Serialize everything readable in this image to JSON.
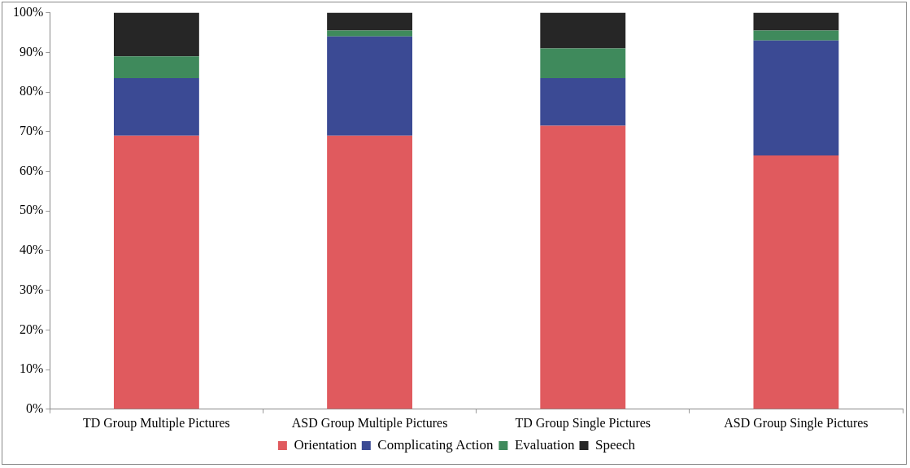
{
  "chart_data": {
    "type": "bar",
    "stacked": true,
    "categories": [
      "TD Group Multiple Pictures",
      "ASD Group Multiple Pictures",
      "TD Group Single Pictures",
      "ASD Group Single Pictures"
    ],
    "series": [
      {
        "name": "Orientation",
        "color": "#e05a5e",
        "values": [
          69,
          69,
          71.5,
          64
        ]
      },
      {
        "name": "Complicating Action",
        "color": "#3b4a94",
        "values": [
          14.5,
          25,
          12,
          29
        ]
      },
      {
        "name": "Evaluation",
        "color": "#3f8a5c",
        "values": [
          5.5,
          1.5,
          7.5,
          2.5
        ]
      },
      {
        "name": "Speech",
        "color": "#262626",
        "values": [
          11,
          4.5,
          9,
          4.5
        ]
      }
    ],
    "ylim": [
      0,
      100
    ],
    "yticks": [
      {
        "value": 0,
        "label": "0%"
      },
      {
        "value": 10,
        "label": "10%"
      },
      {
        "value": 20,
        "label": "20%"
      },
      {
        "value": 30,
        "label": "30%"
      },
      {
        "value": 40,
        "label": "40%"
      },
      {
        "value": 50,
        "label": "50%"
      },
      {
        "value": 60,
        "label": "60%"
      },
      {
        "value": 70,
        "label": "70%"
      },
      {
        "value": 80,
        "label": "80%"
      },
      {
        "value": 90,
        "label": "90%"
      },
      {
        "value": 100,
        "label": "100%"
      }
    ],
    "grid": false,
    "legend": "bottom"
  }
}
